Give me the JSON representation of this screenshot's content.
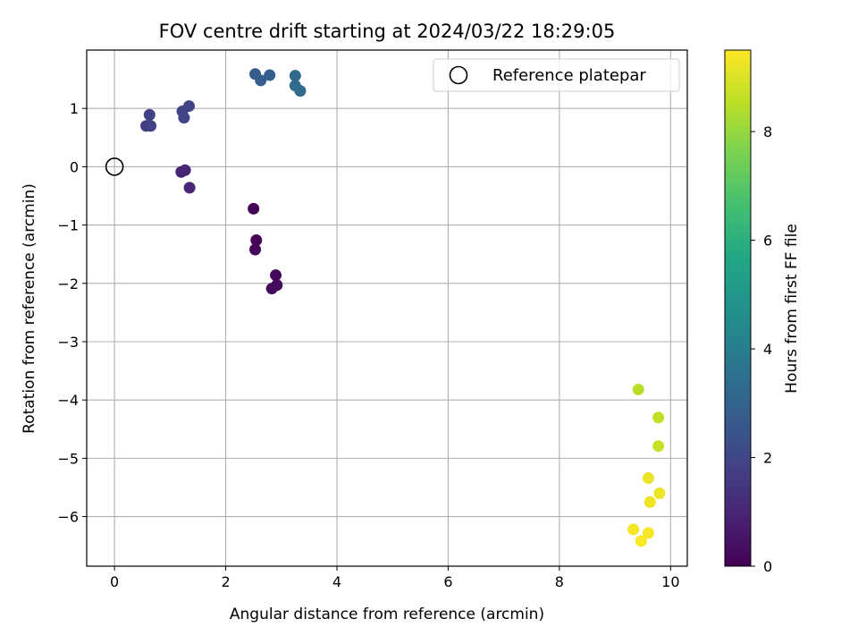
{
  "chart_data": {
    "type": "scatter",
    "title": "FOV centre drift starting at 2024/03/22 18:29:05",
    "xlabel": "Angular distance from reference (arcmin)",
    "ylabel": "Rotation from reference (arcmin)",
    "xlim": [
      -0.5,
      10.3
    ],
    "ylim": [
      -6.85,
      2.0
    ],
    "xticks": [
      0,
      2,
      4,
      6,
      8,
      10
    ],
    "yticks": [
      1,
      0,
      -1,
      -2,
      -3,
      -4,
      -5,
      -6
    ],
    "grid": true,
    "legend": {
      "placement": "top-right",
      "entries": [
        "Reference platepar"
      ]
    },
    "reference_point": {
      "x": 0,
      "y": 0
    },
    "colorbar": {
      "label": "Hours from first FF file",
      "colormap": "viridis",
      "range": [
        0,
        9.5
      ],
      "ticks": [
        0,
        2,
        4,
        6,
        8
      ]
    },
    "points": [
      {
        "x": 2.5,
        "y": -0.72,
        "c": 0.05
      },
      {
        "x": 2.55,
        "y": -1.26,
        "c": 0.1
      },
      {
        "x": 2.53,
        "y": -1.42,
        "c": 0.15
      },
      {
        "x": 2.9,
        "y": -1.86,
        "c": 0.2
      },
      {
        "x": 2.92,
        "y": -2.03,
        "c": 0.25
      },
      {
        "x": 2.83,
        "y": -2.09,
        "c": 0.3
      },
      {
        "x": 1.2,
        "y": -0.09,
        "c": 0.9
      },
      {
        "x": 1.27,
        "y": -0.06,
        "c": 0.95
      },
      {
        "x": 1.35,
        "y": -0.36,
        "c": 1.0
      },
      {
        "x": 0.57,
        "y": 0.7,
        "c": 1.7
      },
      {
        "x": 0.65,
        "y": 0.7,
        "c": 1.75
      },
      {
        "x": 0.63,
        "y": 0.89,
        "c": 1.8
      },
      {
        "x": 1.22,
        "y": 0.95,
        "c": 1.85
      },
      {
        "x": 1.25,
        "y": 0.84,
        "c": 1.9
      },
      {
        "x": 1.34,
        "y": 1.04,
        "c": 1.95
      },
      {
        "x": 2.53,
        "y": 1.59,
        "c": 2.8
      },
      {
        "x": 2.63,
        "y": 1.48,
        "c": 2.85
      },
      {
        "x": 2.79,
        "y": 1.57,
        "c": 2.9
      },
      {
        "x": 3.25,
        "y": 1.56,
        "c": 3.2
      },
      {
        "x": 3.25,
        "y": 1.39,
        "c": 3.25
      },
      {
        "x": 3.34,
        "y": 1.3,
        "c": 3.3
      },
      {
        "x": 9.42,
        "y": -3.82,
        "c": 8.5
      },
      {
        "x": 9.78,
        "y": -4.3,
        "c": 8.6
      },
      {
        "x": 9.78,
        "y": -4.79,
        "c": 8.7
      },
      {
        "x": 9.6,
        "y": -5.34,
        "c": 9.2
      },
      {
        "x": 9.8,
        "y": -5.6,
        "c": 9.25
      },
      {
        "x": 9.63,
        "y": -5.75,
        "c": 9.3
      },
      {
        "x": 9.33,
        "y": -6.22,
        "c": 9.35
      },
      {
        "x": 9.6,
        "y": -6.28,
        "c": 9.4
      },
      {
        "x": 9.47,
        "y": -6.42,
        "c": 9.45
      }
    ]
  }
}
